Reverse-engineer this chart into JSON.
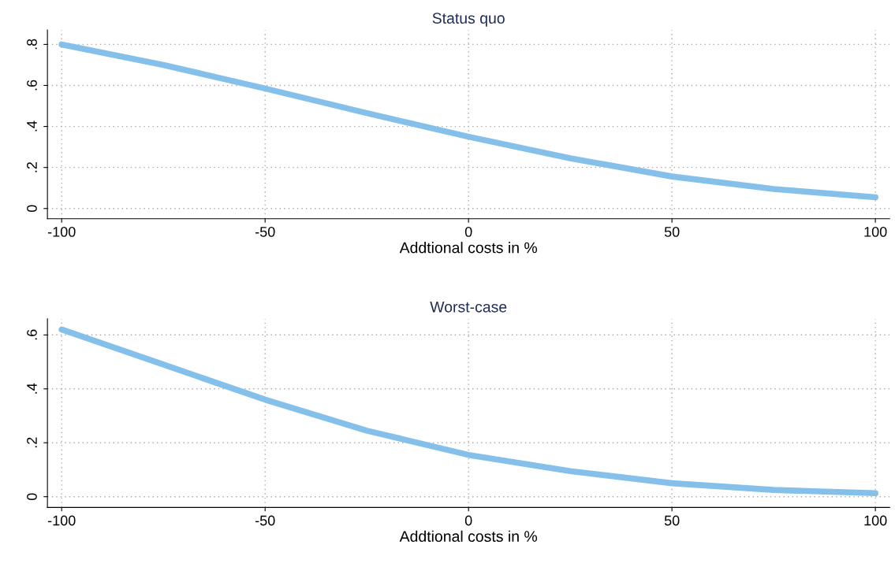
{
  "chart_data": [
    {
      "type": "line",
      "title": "Status quo",
      "xlabel": "Addtional costs in %",
      "x": [
        -100,
        -75,
        -50,
        -25,
        0,
        25,
        50,
        75,
        100
      ],
      "series": [
        {
          "color": "#85c0ea",
          "values": [
            0.8,
            0.7,
            0.585,
            0.465,
            0.35,
            0.245,
            0.156,
            0.095,
            0.055
          ]
        }
      ],
      "xlim": [
        -103.5,
        103.5
      ],
      "xticks": [
        -100,
        -50,
        0,
        50,
        100
      ],
      "ylim": [
        -0.05,
        0.87
      ],
      "yticks": [
        0,
        {
          "value": 0.2,
          "label": ".2"
        },
        {
          "value": 0.4,
          "label": ".4"
        },
        {
          "value": 0.6,
          "label": ".6"
        },
        {
          "value": 0.8,
          "label": ".8"
        }
      ],
      "grid": true,
      "line_style": "solid",
      "legend": false
    },
    {
      "type": "line",
      "title": "Worst-case",
      "xlabel": "Addtional costs in %",
      "x": [
        -100,
        -75,
        -50,
        -25,
        0,
        25,
        50,
        75,
        100
      ],
      "series": [
        {
          "color": "#85c0ea",
          "values": [
            0.62,
            0.49,
            0.36,
            0.245,
            0.155,
            0.095,
            0.05,
            0.025,
            0.013
          ]
        }
      ],
      "xlim": [
        -103.5,
        103.5
      ],
      "xticks": [
        -100,
        -50,
        0,
        50,
        100
      ],
      "ylim": [
        -0.04,
        0.66
      ],
      "yticks": [
        0,
        {
          "value": 0.2,
          "label": ".2"
        },
        {
          "value": 0.4,
          "label": ".4"
        },
        {
          "value": 0.6,
          "label": ".6"
        }
      ],
      "grid": true,
      "line_style": "solid",
      "legend": false
    }
  ]
}
